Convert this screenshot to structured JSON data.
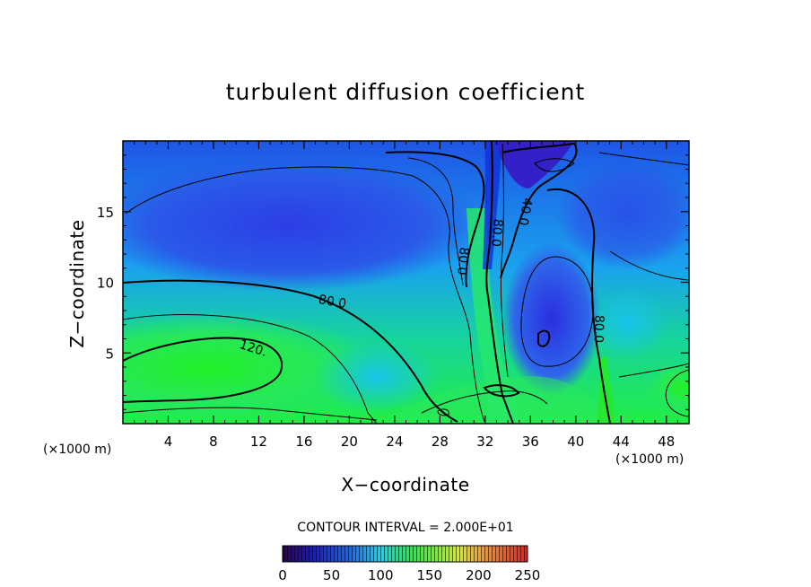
{
  "chart_data": {
    "type": "heatmap",
    "title": "turbulent diffusion coefficient",
    "xlabel": "X−coordinate",
    "ylabel": "Z−coordinate",
    "x_unit": "(×1000 m)",
    "y_unit": "(×1000 m)",
    "xlim": [
      0,
      50
    ],
    "ylim": [
      0,
      20
    ],
    "x_ticks": [
      4,
      8,
      12,
      16,
      20,
      24,
      28,
      32,
      36,
      40,
      44,
      48
    ],
    "y_ticks": [
      5,
      10,
      15
    ],
    "contour_interval_text": "CONTOUR INTERVAL = 2.000E+01",
    "contour_labels": [
      {
        "text": "120.",
        "x": 11.5,
        "z": 5.3
      },
      {
        "text": "80.0",
        "x": 18.5,
        "z": 8.6
      },
      {
        "text": "80.0",
        "x": 30.0,
        "z": 11.5
      },
      {
        "text": "80.0",
        "x": 33.0,
        "z": 13.5
      },
      {
        "text": "40.0",
        "x": 35.5,
        "z": 15.0
      },
      {
        "text": "80.0",
        "x": 42.0,
        "z": 6.7
      }
    ],
    "colorbar": {
      "min": 0,
      "max": 250,
      "ticks": [
        0,
        50,
        100,
        150,
        200,
        250
      ]
    }
  }
}
